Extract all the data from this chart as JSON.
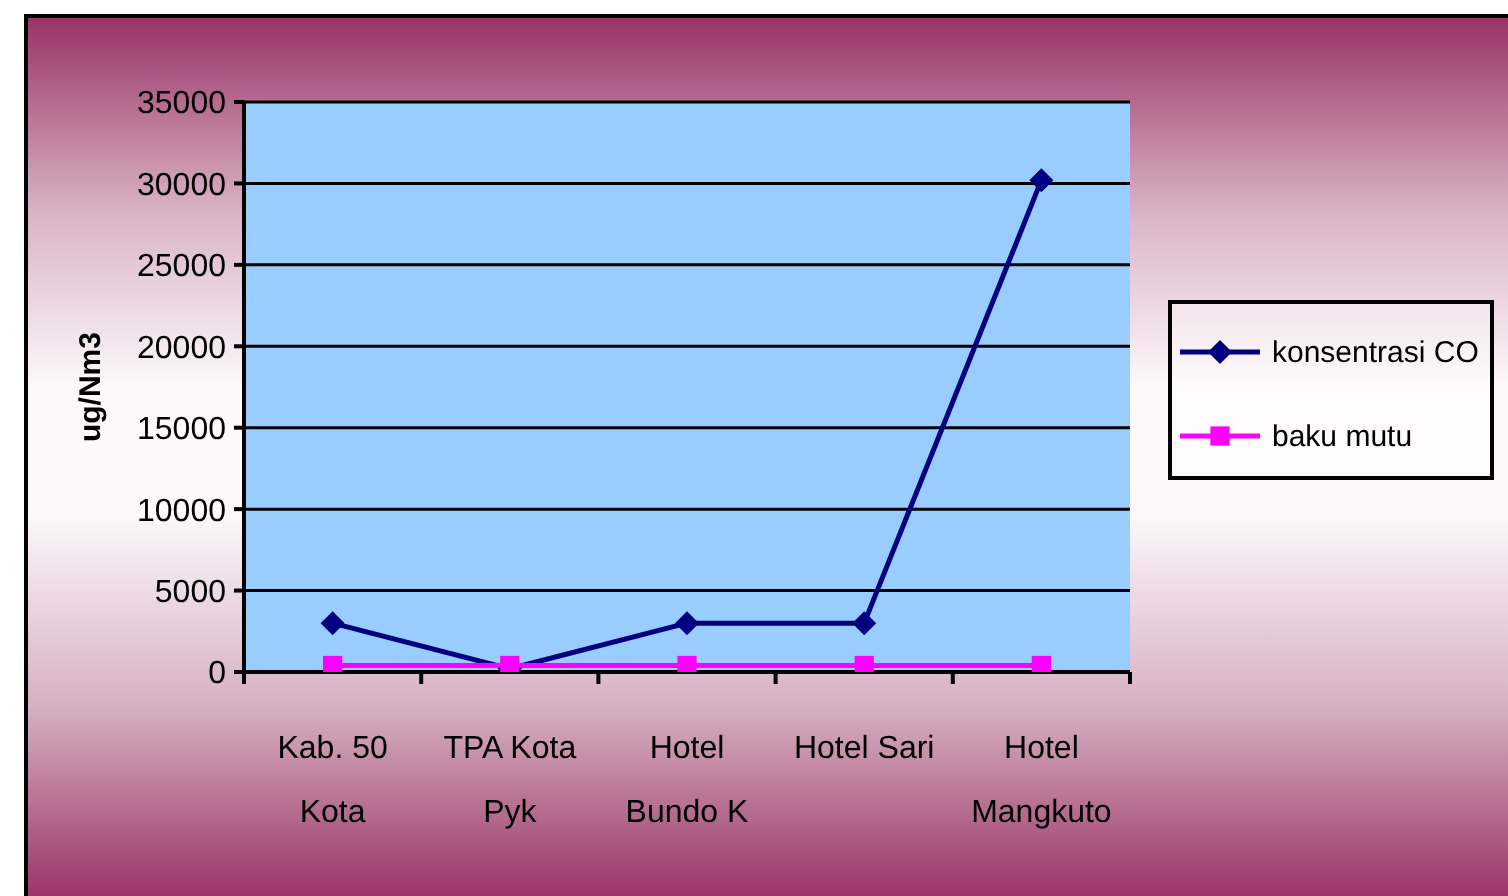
{
  "chart_data": {
    "type": "line",
    "ylabel": "ug/Nm3",
    "categories": [
      "Kab. 50 Kota",
      "TPA Kota Pyk",
      "Hotel Bundo K",
      "Hotel Sari",
      "Hotel Mangkuto"
    ],
    "series": [
      {
        "name": "konsentrasi CO",
        "color": "#000080",
        "marker": "diamond",
        "values": [
          3000,
          200,
          3000,
          3000,
          30200
        ]
      },
      {
        "name": "baku mutu",
        "color": "#ff00ff",
        "marker": "square",
        "values": [
          400,
          400,
          400,
          400,
          400
        ]
      }
    ],
    "ylim": [
      0,
      35000
    ],
    "yticks": [
      0,
      5000,
      10000,
      15000,
      20000,
      25000,
      30000,
      35000
    ],
    "grid": "y",
    "legend": "right"
  }
}
